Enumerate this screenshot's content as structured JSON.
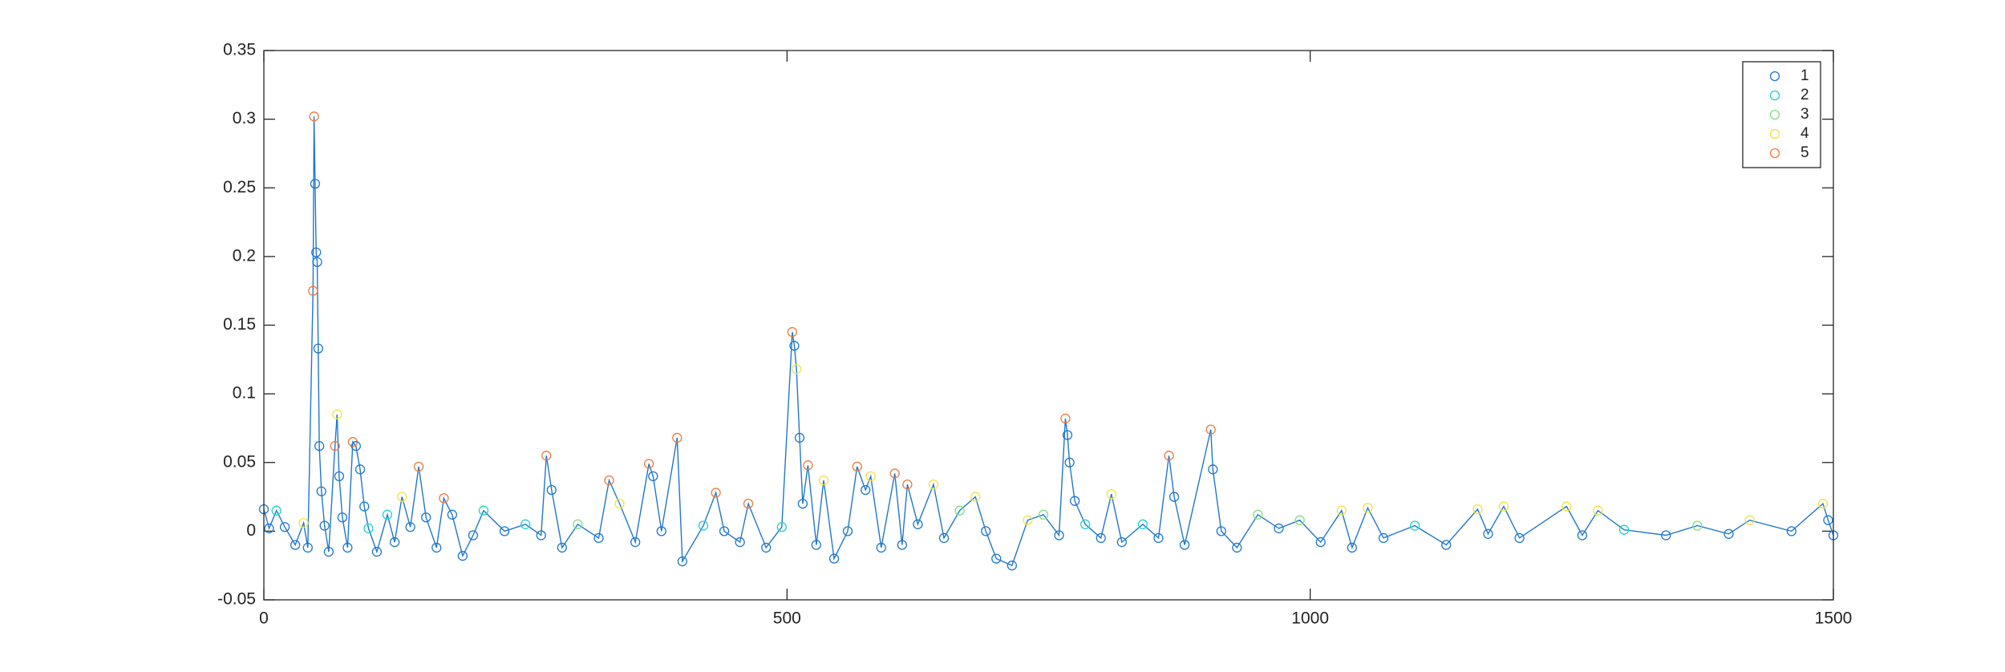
{
  "chart_data": {
    "type": "line",
    "xlim": [
      0,
      1500
    ],
    "ylim": [
      -0.05,
      0.35
    ],
    "xticks": [
      0,
      500,
      1000,
      1500
    ],
    "yticks": [
      -0.05,
      0,
      0.05,
      0.1,
      0.15,
      0.2,
      0.25,
      0.3,
      0.35
    ],
    "grid": false,
    "line_color": "#1f77d0",
    "x": [
      0,
      5,
      12,
      20,
      30,
      38,
      42,
      47,
      48,
      49,
      50,
      51,
      52,
      53,
      55,
      58,
      62,
      68,
      70,
      72,
      75,
      80,
      85,
      88,
      92,
      96,
      100,
      108,
      118,
      125,
      132,
      140,
      148,
      155,
      165,
      172,
      180,
      190,
      200,
      210,
      230,
      250,
      265,
      270,
      275,
      285,
      300,
      320,
      330,
      340,
      355,
      368,
      372,
      380,
      395,
      400,
      420,
      432,
      440,
      455,
      463,
      480,
      495,
      505,
      507,
      509,
      512,
      515,
      520,
      528,
      535,
      545,
      558,
      567,
      575,
      580,
      590,
      603,
      610,
      615,
      625,
      640,
      650,
      665,
      680,
      690,
      700,
      715,
      730,
      745,
      760,
      766,
      768,
      770,
      775,
      785,
      800,
      810,
      820,
      840,
      855,
      865,
      870,
      880,
      905,
      907,
      915,
      930,
      950,
      970,
      990,
      1010,
      1030,
      1040,
      1055,
      1070,
      1100,
      1130,
      1160,
      1170,
      1185,
      1200,
      1245,
      1260,
      1275,
      1300,
      1340,
      1370,
      1400,
      1420,
      1460,
      1490,
      1495,
      1500
    ],
    "values": [
      0.016,
      0.002,
      0.015,
      0.003,
      -0.01,
      0.006,
      -0.012,
      0.175,
      0.302,
      0.253,
      0.203,
      0.196,
      0.133,
      0.062,
      0.029,
      0.004,
      -0.015,
      0.062,
      0.085,
      0.04,
      0.01,
      -0.012,
      0.065,
      0.062,
      0.045,
      0.018,
      0.002,
      -0.015,
      0.012,
      -0.008,
      0.025,
      0.003,
      0.047,
      0.01,
      -0.012,
      0.024,
      0.012,
      -0.018,
      -0.003,
      0.015,
      0,
      0.005,
      -0.003,
      0.055,
      0.03,
      -0.012,
      0.005,
      -0.005,
      0.037,
      0.02,
      -0.008,
      0.049,
      0.04,
      0,
      0.068,
      -0.022,
      0.004,
      0.028,
      0,
      -0.008,
      0.02,
      -0.012,
      0.003,
      0.145,
      0.135,
      0.118,
      0.068,
      0.02,
      0.048,
      -0.01,
      0.037,
      -0.02,
      0,
      0.047,
      0.03,
      0.04,
      -0.012,
      0.042,
      -0.01,
      0.034,
      0.005,
      0.034,
      -0.005,
      0.015,
      0.025,
      0,
      -0.02,
      -0.025,
      0.008,
      0.012,
      -0.003,
      0.082,
      0.07,
      0.05,
      0.022,
      0.005,
      -0.005,
      0.027,
      -0.008,
      0.005,
      -0.005,
      0.055,
      0.025,
      -0.01,
      0.074,
      0.045,
      0,
      -0.012,
      0.012,
      0.002,
      0.008,
      -0.008,
      0.015,
      -0.012,
      0.017,
      -0.005,
      0.004,
      -0.01,
      0.016,
      -0.002,
      0.018,
      -0.005,
      0.018,
      -0.003,
      0.015,
      0.001,
      -0.003,
      0.004,
      -0.002,
      0.008,
      0,
      0.02,
      0.008,
      -0.003
    ],
    "legend_index": [
      0,
      0,
      1,
      0,
      0,
      3,
      0,
      4,
      4,
      0,
      0,
      0,
      0,
      0,
      0,
      0,
      0,
      4,
      3,
      0,
      0,
      0,
      4,
      0,
      0,
      0,
      1,
      0,
      1,
      0,
      3,
      0,
      4,
      0,
      0,
      4,
      0,
      0,
      0,
      1,
      0,
      1,
      0,
      4,
      0,
      0,
      2,
      0,
      4,
      3,
      0,
      4,
      0,
      0,
      4,
      0,
      1,
      4,
      0,
      0,
      4,
      0,
      1,
      4,
      0,
      3,
      0,
      0,
      4,
      0,
      3,
      0,
      0,
      4,
      0,
      3,
      0,
      4,
      0,
      4,
      0,
      3,
      0,
      2,
      3,
      0,
      0,
      0,
      3,
      2,
      0,
      4,
      0,
      0,
      0,
      1,
      0,
      3,
      0,
      1,
      0,
      4,
      0,
      0,
      4,
      0,
      0,
      0,
      2,
      0,
      2,
      0,
      3,
      0,
      3,
      0,
      1,
      0,
      3,
      0,
      3,
      0,
      3,
      0,
      3,
      1,
      0,
      2,
      0,
      3,
      0,
      3,
      0,
      0
    ],
    "legend": {
      "location": "northeast",
      "entries": [
        {
          "name": "1",
          "color": "#1f78d0"
        },
        {
          "name": "2",
          "color": "#1cd3d3"
        },
        {
          "name": "3",
          "color": "#7fe07f"
        },
        {
          "name": "4",
          "color": "#f2e23c"
        },
        {
          "name": "5",
          "color": "#ef7a3a"
        }
      ]
    }
  }
}
